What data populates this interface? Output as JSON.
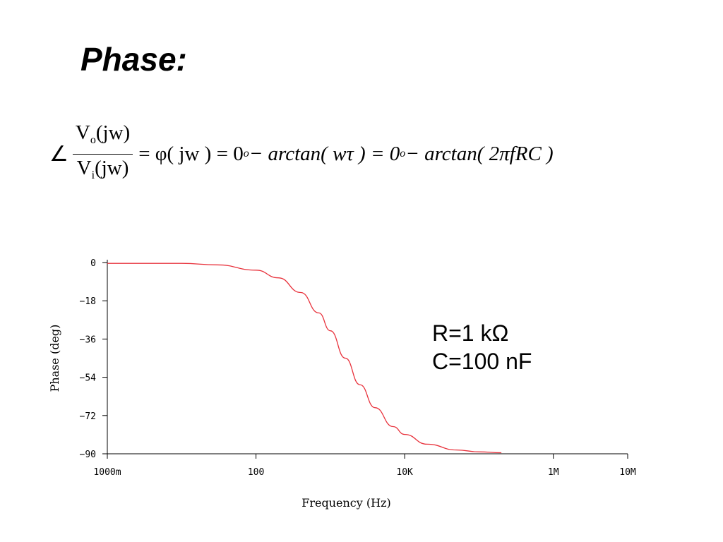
{
  "slide": {
    "title": "Phase:"
  },
  "formula": {
    "angle": "∠",
    "numerator_v": "V",
    "numerator_sub": "o",
    "numerator_arg": "(jw)",
    "denominator_v": "V",
    "denominator_sub": "i",
    "denominator_arg": "(jw)",
    "eq1": "= φ( jw ) = 0",
    "deg": "o",
    "part2": " − arctan( wτ ) = 0",
    "part3": " − arctan( 2πfRC )"
  },
  "annotation": {
    "line1": "R=1 kΩ",
    "line2": "C=100 nF"
  },
  "chart_data": {
    "type": "line",
    "xlabel": "Frequency (Hz)",
    "ylabel": "Phase (deg)",
    "xscale": "log",
    "xlim": [
      1,
      10000000
    ],
    "ylim": [
      -90,
      0
    ],
    "xticks": [
      {
        "value": 1,
        "label": "1000m"
      },
      {
        "value": 100,
        "label": "100"
      },
      {
        "value": 10000,
        "label": "10K"
      },
      {
        "value": 1000000,
        "label": "1M"
      },
      {
        "value": 10000000,
        "label": "10M"
      }
    ],
    "yticks": [
      0,
      -18,
      -36,
      -54,
      -72,
      -90
    ],
    "series": [
      {
        "color": "#e8323c",
        "x": [
          1,
          10,
          30,
          100,
          200,
          400,
          700,
          1000,
          1592,
          2500,
          4000,
          7000,
          10000,
          20000,
          50000,
          100000,
          200000
        ],
        "y": [
          -0.4,
          -0.4,
          -1.1,
          -3.6,
          -7.2,
          -14.1,
          -23.7,
          -32.1,
          -45.0,
          -57.5,
          -68.3,
          -77.2,
          -80.9,
          -85.5,
          -88.2,
          -89.1,
          -89.5
        ]
      }
    ]
  }
}
